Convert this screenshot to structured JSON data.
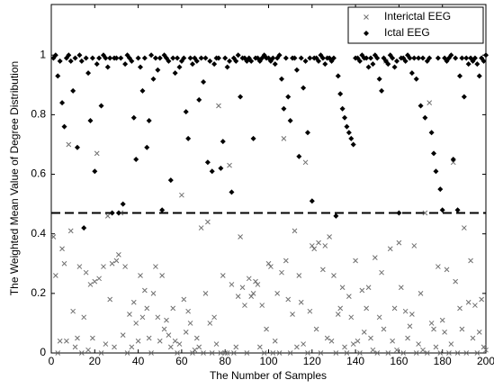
{
  "chart_data": {
    "type": "scatter",
    "x_label": "The Number of Samples",
    "y_label": "The Weighted Mean Value of Degree Distribution",
    "xlim": [
      0,
      200
    ],
    "xticks": [
      0,
      20,
      40,
      60,
      80,
      100,
      120,
      140,
      160,
      180,
      200
    ],
    "ylim": [
      0,
      1.17
    ],
    "yticks": [
      0,
      0.2,
      0.4,
      0.6,
      0.8,
      1
    ],
    "threshold": 0.47,
    "legend": "top-right",
    "grid": false,
    "x": [
      1,
      2,
      3,
      4,
      5,
      6,
      7,
      8,
      9,
      10,
      11,
      12,
      13,
      14,
      15,
      16,
      17,
      18,
      19,
      20,
      21,
      22,
      23,
      24,
      25,
      26,
      27,
      28,
      29,
      30,
      31,
      32,
      33,
      34,
      35,
      36,
      37,
      38,
      39,
      40,
      41,
      42,
      43,
      44,
      45,
      46,
      47,
      48,
      49,
      50,
      51,
      52,
      53,
      54,
      55,
      56,
      57,
      58,
      59,
      60,
      61,
      62,
      63,
      64,
      65,
      66,
      67,
      68,
      69,
      70,
      71,
      72,
      73,
      74,
      75,
      76,
      77,
      78,
      79,
      80,
      81,
      82,
      83,
      84,
      85,
      86,
      87,
      88,
      89,
      90,
      91,
      92,
      93,
      94,
      95,
      96,
      97,
      98,
      99,
      100,
      101,
      102,
      103,
      104,
      105,
      106,
      107,
      108,
      109,
      110,
      111,
      112,
      113,
      114,
      115,
      116,
      117,
      118,
      119,
      120,
      121,
      122,
      123,
      124,
      125,
      126,
      127,
      128,
      129,
      130,
      131,
      132,
      133,
      134,
      135,
      136,
      137,
      138,
      139,
      140,
      141,
      142,
      143,
      144,
      145,
      146,
      147,
      148,
      149,
      150,
      151,
      152,
      153,
      154,
      155,
      156,
      157,
      158,
      159,
      160,
      161,
      162,
      163,
      164,
      165,
      166,
      167,
      168,
      169,
      170,
      171,
      172,
      173,
      174,
      175,
      176,
      177,
      178,
      179,
      180,
      181,
      182,
      183,
      184,
      185,
      186,
      187,
      188,
      189,
      190,
      191,
      192,
      193,
      194,
      195,
      196,
      197,
      198,
      199,
      200
    ],
    "series": [
      {
        "name": "Interictal EEG",
        "color": "#707070",
        "marker": "x",
        "values": [
          0.39,
          0.26,
          0.0,
          0.04,
          0.35,
          0.3,
          0.04,
          0.7,
          0.41,
          0.14,
          0.02,
          0.05,
          0.29,
          0.0,
          0.12,
          0.27,
          0.01,
          0.23,
          0.05,
          0.24,
          0.67,
          0.25,
          0.0,
          0.29,
          0.03,
          0.46,
          0.18,
          0.3,
          0.02,
          0.31,
          0.33,
          0.47,
          0.06,
          0.29,
          0.0,
          0.13,
          0.02,
          0.17,
          0.1,
          0.04,
          0.26,
          0.12,
          0.21,
          0.15,
          0.05,
          0.0,
          0.2,
          0.29,
          0.12,
          0.04,
          0.26,
          0.08,
          0.11,
          0.06,
          0.02,
          0.15,
          0.04,
          0.0,
          0.03,
          0.53,
          0.18,
          0.07,
          0.14,
          0.1,
          0.0,
          0.01,
          0.05,
          0.02,
          0.42,
          0.0,
          0.2,
          0.44,
          0.1,
          0.0,
          0.12,
          0.03,
          0.83,
          0.0,
          0.26,
          0.0,
          0.0,
          0.63,
          0.23,
          0.0,
          0.02,
          0.19,
          0.39,
          0.22,
          0.16,
          0.0,
          0.25,
          0.19,
          0.2,
          0.24,
          0.23,
          0.02,
          0.16,
          0.0,
          0.08,
          0.3,
          0.29,
          0.0,
          0.04,
          0.2,
          0.0,
          0.27,
          0.72,
          0.31,
          0.18,
          0.0,
          0.13,
          0.41,
          0.02,
          0.26,
          0.17,
          0.03,
          0.64,
          0.0,
          0.14,
          0.36,
          0.35,
          0.08,
          0.37,
          0.0,
          0.28,
          0.36,
          0.05,
          0.39,
          0.04,
          0.26,
          0.0,
          0.13,
          0.15,
          0.22,
          0.02,
          0.0,
          0.19,
          0.12,
          0.03,
          0.31,
          0.04,
          0.0,
          0.21,
          0.07,
          0.15,
          0.22,
          0.05,
          0.01,
          0.32,
          0.0,
          0.12,
          0.27,
          0.08,
          0.98,
          0.0,
          0.35,
          0.04,
          0.15,
          0.01,
          0.37,
          0.22,
          0.0,
          0.14,
          0.05,
          0.09,
          0.13,
          0.36,
          0.0,
          0.03,
          0.2,
          0.01,
          0.47,
          0.0,
          0.84,
          0.1,
          0.08,
          0.02,
          0.29,
          0.0,
          0.11,
          0.07,
          0.28,
          0.0,
          0.03,
          0.64,
          0.24,
          0.0,
          0.15,
          0.08,
          0.42,
          0.0,
          0.17,
          0.31,
          0.05,
          0.16,
          0.0,
          0.07,
          0.18,
          0.02,
          0.01
        ]
      },
      {
        "name": "Ictal EEG",
        "color": "#000000",
        "marker": "diamond",
        "values": [
          0.99,
          1.0,
          0.93,
          0.98,
          0.84,
          0.76,
          0.99,
          1.0,
          0.98,
          0.88,
          0.99,
          0.69,
          1.0,
          0.98,
          0.42,
          0.99,
          0.94,
          0.78,
          0.99,
          0.61,
          0.97,
          0.99,
          0.83,
          1.0,
          0.99,
          0.96,
          0.99,
          0.47,
          0.99,
          0.99,
          0.47,
          0.99,
          0.5,
          0.97,
          1.0,
          0.99,
          0.98,
          0.79,
          0.65,
          0.99,
          0.96,
          0.88,
          0.99,
          0.69,
          0.78,
          1.0,
          0.92,
          0.99,
          0.95,
          0.99,
          0.48,
          1.0,
          0.99,
          0.98,
          0.58,
          0.99,
          0.94,
          0.99,
          0.96,
          0.98,
          0.99,
          0.81,
          0.72,
          0.99,
          0.97,
          0.99,
          0.98,
          0.85,
          0.99,
          0.91,
          0.99,
          0.64,
          0.98,
          0.61,
          0.97,
          0.99,
          0.99,
          0.62,
          0.71,
          0.99,
          0.96,
          0.98,
          0.54,
          0.99,
          0.98,
          1.0,
          0.86,
          0.99,
          0.99,
          0.98,
          0.99,
          0.98,
          0.72,
          0.99,
          0.99,
          0.98,
          0.99,
          1.0,
          0.99,
          0.99,
          0.98,
          0.99,
          0.97,
          0.99,
          1.0,
          0.92,
          0.82,
          0.99,
          0.86,
          0.78,
          0.99,
          0.99,
          0.95,
          0.66,
          0.99,
          0.89,
          0.98,
          0.74,
          0.99,
          0.51,
          0.99,
          0.99,
          0.98,
          1.0,
          0.99,
          0.97,
          0.99,
          0.99,
          0.98,
          0.99,
          0.46,
          0.93,
          0.87,
          0.82,
          0.79,
          0.76,
          0.74,
          0.72,
          0.7,
          0.99,
          0.99,
          0.98,
          1.0,
          0.99,
          0.99,
          0.96,
          0.99,
          0.97,
          1.0,
          0.99,
          0.92,
          0.88,
          0.99,
          0.98,
          0.97,
          1.0,
          0.99,
          0.96,
          0.98,
          0.47,
          0.99,
          0.99,
          0.98,
          1.0,
          0.99,
          0.94,
          0.99,
          0.92,
          0.99,
          0.83,
          0.99,
          0.79,
          0.98,
          0.99,
          0.74,
          0.67,
          0.61,
          0.99,
          0.55,
          0.48,
          0.99,
          0.98,
          0.99,
          1.0,
          0.65,
          0.99,
          0.48,
          0.93,
          0.99,
          0.86,
          0.99,
          0.97,
          0.99,
          0.98,
          0.99,
          0.97,
          0.93,
          0.99,
          0.98,
          1.0
        ]
      }
    ]
  }
}
